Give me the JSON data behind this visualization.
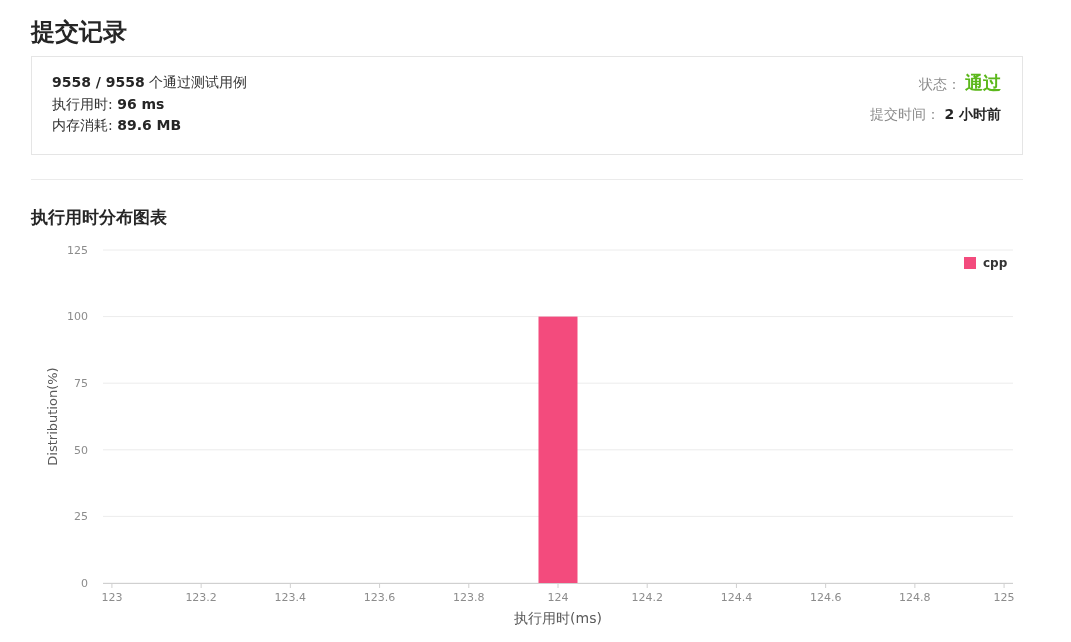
{
  "chart_data": [
    {
      "type": "other",
      "title": "提交记录",
      "annotations": [
        "9558 / 9558",
        "个通过测试用例",
        "执行用时: ",
        "96 ms",
        "内存消耗: ",
        "89.6 MB",
        "状态：",
        "通过",
        "提交时间：",
        "2 小时前"
      ]
    },
    {
      "type": "bar",
      "title": "执行用时分布图表",
      "xlabel": "执行用时(ms)",
      "ylabel": "Distribution(%)",
      "x": [
        124
      ],
      "series": [
        {
          "name": "cpp",
          "color": "#f34b7d",
          "values": [
            100
          ]
        }
      ],
      "xlim": [
        122.98,
        125.02
      ],
      "xticks": [
        123,
        123.2,
        123.4,
        123.6,
        123.8,
        124,
        124.2,
        124.4,
        124.6,
        124.8,
        125
      ],
      "ylim": [
        0,
        125
      ],
      "yticks": [
        0,
        25,
        50,
        75,
        100,
        125
      ],
      "grid": "y",
      "legend": "top right"
    }
  ]
}
